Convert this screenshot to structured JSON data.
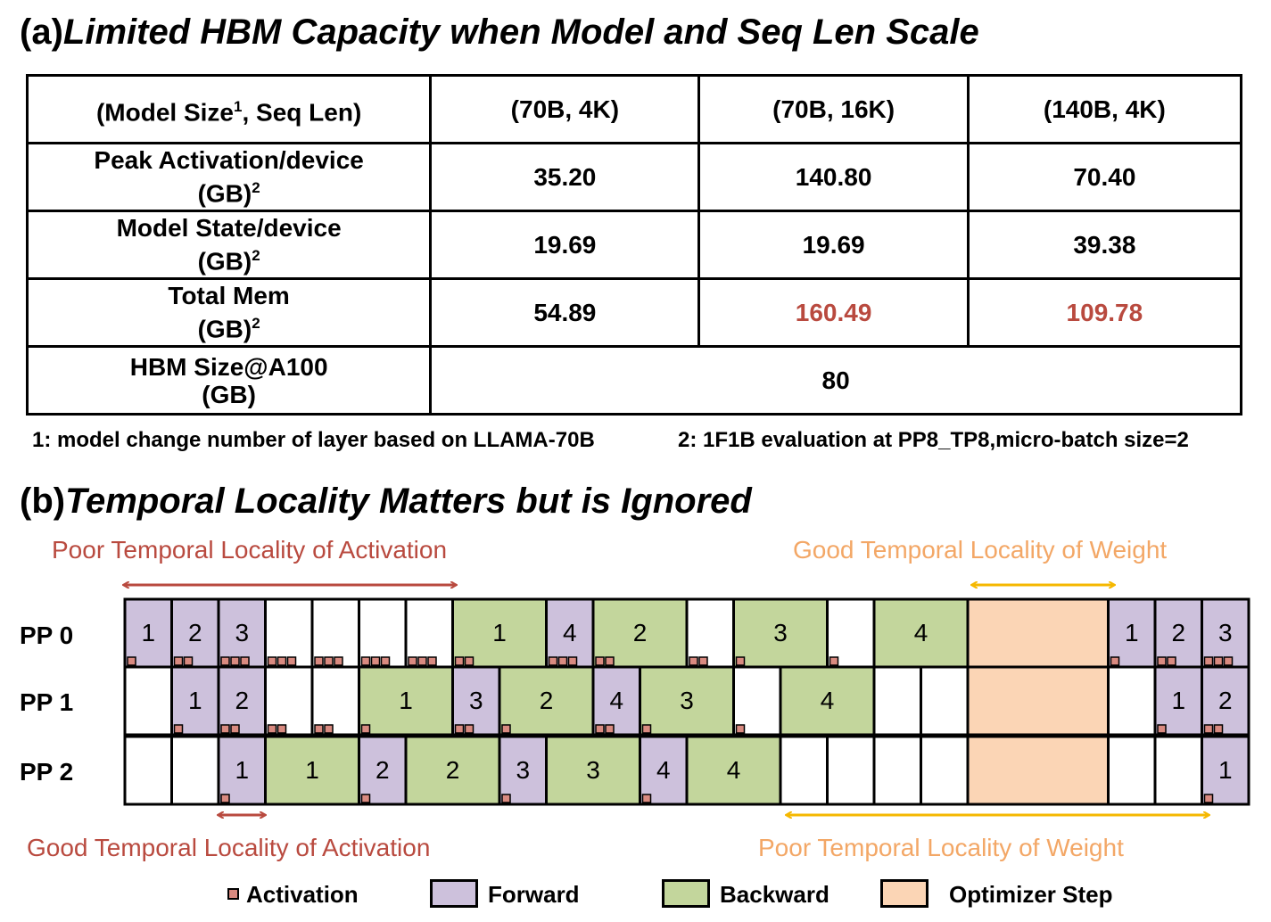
{
  "title_a_prefix": "(a)",
  "title_a": "Limited HBM Capacity when Model and Seq Len Scale",
  "table": {
    "header_main": "(Model Size",
    "header_sup": "1",
    "header_rest": ", Seq Len)",
    "cols": [
      "(70B, 4K)",
      "(70B, 16K)",
      "(140B, 4K)"
    ],
    "rows": [
      {
        "label_line1": "Peak Activation/device",
        "label_line2": "(GB)",
        "sup": "2",
        "values": [
          "35.20",
          "140.80",
          "70.40"
        ],
        "over": [
          false,
          false,
          false
        ]
      },
      {
        "label_line1": "Model State/device",
        "label_line2": "(GB)",
        "sup": "2",
        "values": [
          "19.69",
          "19.69",
          "39.38"
        ],
        "over": [
          false,
          false,
          false
        ]
      },
      {
        "label_line1": "Total Mem",
        "label_line2": "(GB)",
        "sup": "2",
        "values": [
          "54.89",
          "160.49",
          "109.78"
        ],
        "over": [
          false,
          true,
          true
        ]
      }
    ],
    "hbm_label_line1": "HBM Size@A100",
    "hbm_label_line2": "(GB)",
    "hbm_value": "80"
  },
  "footnote1": "1: model change number of layer based on LLAMA-70B",
  "footnote2": "2: 1F1B evaluation at PP8_TP8,micro-batch size=2",
  "title_b_prefix": "(b)",
  "title_b": "Temporal Locality Matters but is Ignored",
  "annotations": {
    "poor_activation": "Poor Temporal Locality of Activation",
    "good_weight": "Good Temporal Locality of Weight",
    "good_activation": "Good Temporal Locality of Activation",
    "poor_weight": "Poor Temporal Locality of Weight"
  },
  "pp_labels": [
    "PP 0",
    "PP 1",
    "PP 2"
  ],
  "pipeline_rows": [
    {
      "cells": [
        {
          "t": "F",
          "l": "1",
          "w": 1,
          "a": 1
        },
        {
          "t": "F",
          "l": "2",
          "w": 1,
          "a": 2
        },
        {
          "t": "F",
          "l": "3",
          "w": 1,
          "a": 3
        },
        {
          "t": "E",
          "l": "",
          "w": 1,
          "a": 3
        },
        {
          "t": "E",
          "l": "",
          "w": 1,
          "a": 3
        },
        {
          "t": "E",
          "l": "",
          "w": 1,
          "a": 3
        },
        {
          "t": "E",
          "l": "",
          "w": 1,
          "a": 3
        },
        {
          "t": "B",
          "l": "1",
          "w": 2,
          "a": 2
        },
        {
          "t": "F",
          "l": "4",
          "w": 1,
          "a": 3
        },
        {
          "t": "B",
          "l": "2",
          "w": 2,
          "a": 2
        },
        {
          "t": "E",
          "l": "",
          "w": 1,
          "a": 2
        },
        {
          "t": "B",
          "l": "3",
          "w": 2,
          "a": 1
        },
        {
          "t": "E",
          "l": "",
          "w": 1,
          "a": 1
        },
        {
          "t": "B",
          "l": "4",
          "w": 2,
          "a": 0
        },
        {
          "t": "O",
          "l": "",
          "w": 3,
          "a": 0
        },
        {
          "t": "F",
          "l": "1",
          "w": 1,
          "a": 1
        },
        {
          "t": "F",
          "l": "2",
          "w": 1,
          "a": 2
        },
        {
          "t": "F",
          "l": "3",
          "w": 1,
          "a": 3
        }
      ]
    },
    {
      "cells": [
        {
          "t": "E",
          "l": "",
          "w": 1,
          "a": 0
        },
        {
          "t": "F",
          "l": "1",
          "w": 1,
          "a": 1
        },
        {
          "t": "F",
          "l": "2",
          "w": 1,
          "a": 2
        },
        {
          "t": "E",
          "l": "",
          "w": 1,
          "a": 2
        },
        {
          "t": "E",
          "l": "",
          "w": 1,
          "a": 2
        },
        {
          "t": "B",
          "l": "1",
          "w": 2,
          "a": 1
        },
        {
          "t": "F",
          "l": "3",
          "w": 1,
          "a": 2
        },
        {
          "t": "B",
          "l": "2",
          "w": 2,
          "a": 1
        },
        {
          "t": "F",
          "l": "4",
          "w": 1,
          "a": 2
        },
        {
          "t": "B",
          "l": "3",
          "w": 2,
          "a": 1
        },
        {
          "t": "E",
          "l": "",
          "w": 1,
          "a": 1
        },
        {
          "t": "B",
          "l": "4",
          "w": 2,
          "a": 0
        },
        {
          "t": "E",
          "l": "",
          "w": 1,
          "a": 0
        },
        {
          "t": "E",
          "l": "",
          "w": 1,
          "a": 0
        },
        {
          "t": "O",
          "l": "",
          "w": 3,
          "a": 0
        },
        {
          "t": "E",
          "l": "",
          "w": 1,
          "a": 0
        },
        {
          "t": "F",
          "l": "1",
          "w": 1,
          "a": 1
        },
        {
          "t": "F",
          "l": "2",
          "w": 1,
          "a": 2
        }
      ]
    },
    {
      "cells": [
        {
          "t": "E",
          "l": "",
          "w": 1,
          "a": 0
        },
        {
          "t": "E",
          "l": "",
          "w": 1,
          "a": 0
        },
        {
          "t": "F",
          "l": "1",
          "w": 1,
          "a": 1
        },
        {
          "t": "B",
          "l": "1",
          "w": 2,
          "a": 0
        },
        {
          "t": "F",
          "l": "2",
          "w": 1,
          "a": 1
        },
        {
          "t": "B",
          "l": "2",
          "w": 2,
          "a": 0
        },
        {
          "t": "F",
          "l": "3",
          "w": 1,
          "a": 1
        },
        {
          "t": "B",
          "l": "3",
          "w": 2,
          "a": 0
        },
        {
          "t": "F",
          "l": "4",
          "w": 1,
          "a": 1
        },
        {
          "t": "B",
          "l": "4",
          "w": 2,
          "a": 0
        },
        {
          "t": "E",
          "l": "",
          "w": 1,
          "a": 0
        },
        {
          "t": "E",
          "l": "",
          "w": 1,
          "a": 0
        },
        {
          "t": "E",
          "l": "",
          "w": 1,
          "a": 0
        },
        {
          "t": "E",
          "l": "",
          "w": 1,
          "a": 0
        },
        {
          "t": "O",
          "l": "",
          "w": 3,
          "a": 0
        },
        {
          "t": "E",
          "l": "",
          "w": 1,
          "a": 0
        },
        {
          "t": "E",
          "l": "",
          "w": 1,
          "a": 0
        },
        {
          "t": "F",
          "l": "1",
          "w": 1,
          "a": 1
        }
      ]
    }
  ],
  "legend": {
    "activation": "Activation",
    "forward": "Forward",
    "backward": "Backward",
    "optimizer": "Optimizer Step"
  },
  "colors": {
    "forward": "#cdc1dc",
    "backward": "#c3d69c",
    "optimizer": "#fbd5b5",
    "activation": "#d98a80",
    "red_text": "#b94a3f",
    "orange_text": "#f3a766",
    "orange_arrow": "#f5b800"
  }
}
